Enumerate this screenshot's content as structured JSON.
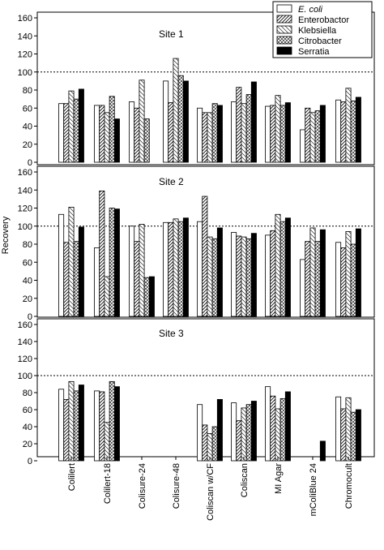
{
  "chart_data": {
    "type": "bar",
    "ylabel": "Recovery",
    "ylim": [
      0,
      160
    ],
    "yticks": [
      "0",
      "20",
      "40",
      "60",
      "80",
      "100",
      "120",
      "140",
      "160"
    ],
    "reference_line": 100,
    "categories": [
      "Colilert",
      "Colilert-18",
      "Colisure-24",
      "Colisure-48",
      "Coliscan w/CF",
      "Coliscan",
      "MI Agar",
      "mColiBlue 24",
      "Chromocult"
    ],
    "series_names": [
      "E. coli",
      "Enterobactor",
      "Klebsiella",
      "Citrobacter",
      "Serratia"
    ],
    "legend": {
      "placement": "top-right"
    },
    "panels": [
      {
        "title": "Site 1",
        "series": [
          {
            "name": "E. coli",
            "values": [
              65,
              63,
              67,
              90,
              60,
              67,
              62,
              36,
              69
            ]
          },
          {
            "name": "Enterobactor",
            "values": [
              65,
              63,
              60,
              66,
              55,
              83,
              63,
              60,
              67
            ]
          },
          {
            "name": "Klebsiella",
            "values": [
              79,
              55,
              91,
              115,
              55,
              65,
              74,
              55,
              82
            ]
          },
          {
            "name": "Citrobacter",
            "values": [
              70,
              73,
              48,
              96,
              65,
              75,
              63,
              57,
              68
            ]
          },
          {
            "name": "Serratia",
            "values": [
              81,
              48,
              0,
              90,
              63,
              89,
              66,
              63,
              72
            ]
          }
        ]
      },
      {
        "title": "Site 2",
        "series": [
          {
            "name": "E. coli",
            "values": [
              113,
              76,
              100,
              104,
              105,
              93,
              90,
              63,
              82
            ]
          },
          {
            "name": "Enterobactor",
            "values": [
              82,
              139,
              83,
              104,
              133,
              89,
              95,
              83,
              76
            ]
          },
          {
            "name": "Klebsiella",
            "values": [
              121,
              44,
              102,
              108,
              88,
              88,
              113,
              98,
              94
            ]
          },
          {
            "name": "Citrobacter",
            "values": [
              83,
              120,
              43,
              105,
              86,
              86,
              105,
              83,
              80
            ]
          },
          {
            "name": "Serratia",
            "values": [
              99,
              119,
              44,
              109,
              98,
              92,
              109,
              96,
              97
            ]
          }
        ]
      },
      {
        "title": "Site 3",
        "series": [
          {
            "name": "E. coli",
            "values": [
              84,
              82,
              0,
              0,
              66,
              68,
              87,
              0,
              75
            ]
          },
          {
            "name": "Enterobactor",
            "values": [
              72,
              81,
              0,
              0,
              42,
              47,
              76,
              0,
              61
            ]
          },
          {
            "name": "Klebsiella",
            "values": [
              93,
              45,
              0,
              0,
              32,
              62,
              61,
              0,
              74
            ]
          },
          {
            "name": "Citrobacter",
            "values": [
              82,
              93,
              0,
              0,
              40,
              66,
              73,
              0,
              57
            ]
          },
          {
            "name": "Serratia",
            "values": [
              89,
              87,
              0,
              0,
              72,
              70,
              81,
              23,
              60
            ]
          }
        ]
      }
    ]
  }
}
